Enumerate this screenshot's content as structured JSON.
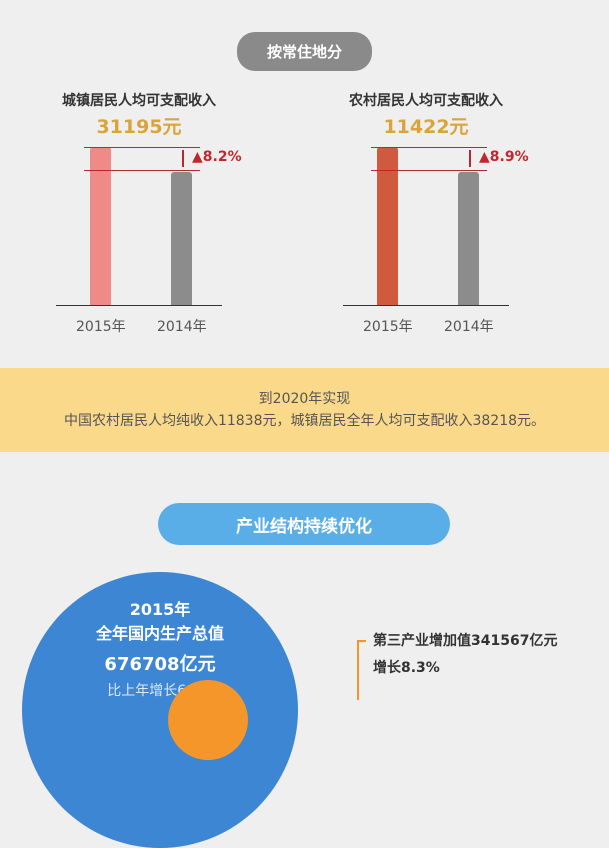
{
  "section1": {
    "label": "按常住地分"
  },
  "chart_data": [
    {
      "type": "bar",
      "title": "城镇居民人均可支配收入",
      "value_label": "31195元",
      "categories": [
        "2015年",
        "2014年"
      ],
      "values": [
        31195,
        28832
      ],
      "growth_label": "▲8.2%",
      "colors": [
        "#ee8b86",
        "#8c8c8c"
      ]
    },
    {
      "type": "bar",
      "title": "农村居民人均可支配收入",
      "value_label": "11422元",
      "categories": [
        "2015年",
        "2014年"
      ],
      "values": [
        11422,
        10489
      ],
      "growth_label": "▲8.9%",
      "colors": [
        "#cf5a3e",
        "#8c8c8c"
      ]
    }
  ],
  "band": {
    "line1": "到2020年实现",
    "line2": "中国农村居民人均纯收入11838元，城镇居民全年人均可支配收入38218元。"
  },
  "section2": {
    "label": "产业结构持续优化"
  },
  "gdp": {
    "year": "2015年",
    "title": "全年国内生产总值",
    "value": "676708亿元",
    "growth": "比上年增长6.9%"
  },
  "tertiary": {
    "line1": "第三产业增加值341567亿元",
    "line2": "增长8.3%"
  }
}
